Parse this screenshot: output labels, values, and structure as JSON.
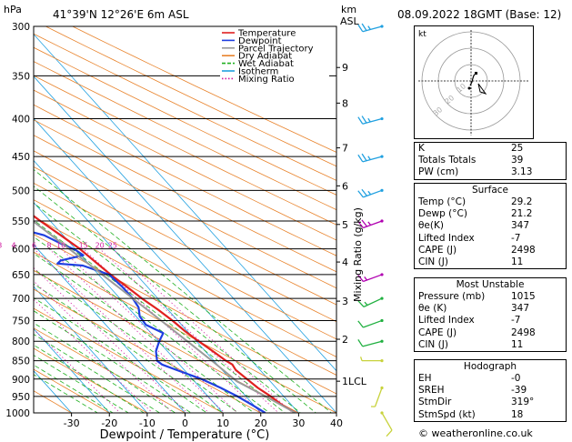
{
  "header": {
    "units": "hPa",
    "location": "41°39'N 12°26'E 6m ASL",
    "km_label": "km",
    "asl_label": "ASL",
    "date": "08.09.2022 18GMT (Base: 12)"
  },
  "legend": [
    {
      "name": "Temperature",
      "color": "#e02020"
    },
    {
      "name": "Dewpoint",
      "color": "#1f3fe0"
    },
    {
      "name": "Parcel Trajectory",
      "color": "#9a9a9a"
    },
    {
      "name": "Dry Adiabat",
      "color": "#e8822a"
    },
    {
      "name": "Wet Adiabat",
      "color": "#20b020"
    },
    {
      "name": "Isotherm",
      "color": "#20a0e0"
    },
    {
      "name": "Mixing Ratio",
      "color": "#d01aa0"
    }
  ],
  "chart_data": {
    "type": "line",
    "xlabel": "Dewpoint / Temperature (°C)",
    "ylabel_right": "Mixing Ratio (g/kg)",
    "x_ticks": [
      -30,
      -20,
      -10,
      0,
      10,
      20,
      30,
      40
    ],
    "pressure_ticks": [
      300,
      350,
      400,
      450,
      500,
      550,
      600,
      650,
      700,
      750,
      800,
      850,
      900,
      950,
      1000
    ],
    "km_ticks": [
      {
        "km": "1LCL",
        "p": 906
      },
      {
        "km": "2",
        "p": 795
      },
      {
        "km": "3",
        "p": 706
      },
      {
        "km": "4",
        "p": 625
      },
      {
        "km": "5",
        "p": 556
      },
      {
        "km": "6",
        "p": 493
      },
      {
        "km": "7",
        "p": 438
      },
      {
        "km": "8",
        "p": 381
      },
      {
        "km": "9",
        "p": 341
      }
    ],
    "mixing_ratio_labels": [
      "1",
      "2",
      "3",
      "4",
      "6",
      "8",
      "10",
      "15",
      "20",
      "25"
    ],
    "series": [
      {
        "name": "Temperature",
        "color": "#e02020",
        "points": [
          [
            1000,
            29.2
          ],
          [
            975,
            27.5
          ],
          [
            950,
            26.6
          ],
          [
            925,
            25.2
          ],
          [
            900,
            24.4
          ],
          [
            875,
            23.6
          ],
          [
            860,
            24.0
          ],
          [
            850,
            23.2
          ],
          [
            825,
            22.0
          ],
          [
            800,
            20.6
          ],
          [
            775,
            19.4
          ],
          [
            750,
            18.6
          ],
          [
            725,
            17.4
          ],
          [
            700,
            15.8
          ],
          [
            675,
            14.6
          ],
          [
            650,
            13.2
          ],
          [
            625,
            12.2
          ],
          [
            600,
            11.2
          ],
          [
            575,
            9.4
          ],
          [
            550,
            7.4
          ],
          [
            525,
            5.6
          ],
          [
            500,
            3.6
          ],
          [
            475,
            1.0
          ],
          [
            450,
            -1.8
          ],
          [
            425,
            -4.6
          ],
          [
            400,
            -7.4
          ],
          [
            375,
            -10.6
          ],
          [
            350,
            -14.0
          ],
          [
            325,
            -17.6
          ],
          [
            300,
            -21.0
          ]
        ]
      },
      {
        "name": "Dewpoint",
        "color": "#1f3fe0",
        "points": [
          [
            1000,
            21.2
          ],
          [
            975,
            19.6
          ],
          [
            950,
            17.8
          ],
          [
            925,
            15.4
          ],
          [
            900,
            12.4
          ],
          [
            875,
            8.0
          ],
          [
            860,
            5.4
          ],
          [
            850,
            5.0
          ],
          [
            825,
            7.0
          ],
          [
            800,
            10.2
          ],
          [
            780,
            13.2
          ],
          [
            760,
            10.6
          ],
          [
            740,
            11.0
          ],
          [
            720,
            12.8
          ],
          [
            700,
            13.4
          ],
          [
            675,
            13.4
          ],
          [
            650,
            12.8
          ],
          [
            632,
            8.0
          ],
          [
            628,
            1.8
          ],
          [
            622,
            3.4
          ],
          [
            612,
            10.6
          ],
          [
            602,
            9.8
          ],
          [
            590,
            7.4
          ],
          [
            575,
            5.0
          ],
          [
            560,
            -1.4
          ],
          [
            548,
            4.4
          ],
          [
            535,
            -4.0
          ],
          [
            518,
            -13.0
          ],
          [
            505,
            -20.8
          ],
          [
            498,
            -10.0
          ],
          [
            493,
            -12.8
          ],
          [
            488,
            -32.0
          ],
          [
            470,
            -33.0
          ],
          [
            450,
            -33.6
          ],
          [
            425,
            -35.0
          ],
          [
            400,
            -36.8
          ],
          [
            375,
            -40.0
          ],
          [
            350,
            -44.0
          ],
          [
            325,
            -48.0
          ],
          [
            300,
            -51.0
          ]
        ]
      },
      {
        "name": "Parcel Trajectory",
        "color": "#9a9a9a",
        "points": [
          [
            1000,
            29.2
          ],
          [
            950,
            25.2
          ],
          [
            906,
            21.2
          ],
          [
            850,
            19.5
          ],
          [
            800,
            17.6
          ],
          [
            750,
            15.6
          ],
          [
            700,
            13.4
          ],
          [
            650,
            11.0
          ],
          [
            600,
            8.4
          ],
          [
            550,
            5.4
          ],
          [
            500,
            2.0
          ],
          [
            450,
            -2.0
          ],
          [
            400,
            -7.2
          ],
          [
            370,
            -10.6
          ]
        ]
      }
    ],
    "wind_barbs": [
      {
        "p": 1000,
        "dir": 150,
        "speed": 10
      },
      {
        "p": 925,
        "dir": 200,
        "speed": 5
      },
      {
        "p": 850,
        "dir": 270,
        "speed": 5
      },
      {
        "p": 800,
        "dir": 255,
        "speed": 10
      },
      {
        "p": 750,
        "dir": 250,
        "speed": 10
      },
      {
        "p": 700,
        "dir": 245,
        "speed": 15
      },
      {
        "p": 650,
        "dir": 250,
        "speed": 15
      },
      {
        "p": 550,
        "dir": 250,
        "speed": 25
      },
      {
        "p": 500,
        "dir": 250,
        "speed": 25
      },
      {
        "p": 450,
        "dir": 255,
        "speed": 25
      },
      {
        "p": 400,
        "dir": 255,
        "speed": 25
      },
      {
        "p": 300,
        "dir": 255,
        "speed": 25
      }
    ]
  },
  "hodograph": {
    "label": "kt",
    "ring_labels": [
      "10",
      "20",
      "30"
    ],
    "trace_color": "#000000",
    "storm_motion_color": "#000000"
  },
  "indices": {
    "rows": [
      {
        "label": "K",
        "value": "25"
      },
      {
        "label": "Totals Totals",
        "value": "39"
      },
      {
        "label": "PW (cm)",
        "value": "3.13"
      }
    ]
  },
  "surface": {
    "title": "Surface",
    "rows": [
      {
        "label": "Temp (°C)",
        "value": "29.2"
      },
      {
        "label": "Dewp (°C)",
        "value": "21.2"
      },
      {
        "label": "θe(K)",
        "value": "347"
      },
      {
        "label": "Lifted Index",
        "value": "-7"
      },
      {
        "label": "CAPE (J)",
        "value": "2498"
      },
      {
        "label": "CIN (J)",
        "value": "11"
      }
    ]
  },
  "most_unstable": {
    "title": "Most Unstable",
    "rows": [
      {
        "label": "Pressure (mb)",
        "value": "1015"
      },
      {
        "label": "θe (K)",
        "value": "347"
      },
      {
        "label": "Lifted Index",
        "value": "-7"
      },
      {
        "label": "CAPE (J)",
        "value": "2498"
      },
      {
        "label": "CIN (J)",
        "value": "11"
      }
    ]
  },
  "hodo_table": {
    "title": "Hodograph",
    "rows": [
      {
        "label": "EH",
        "value": "-0"
      },
      {
        "label": "SREH",
        "value": "-39"
      },
      {
        "label": "StmDir",
        "value": "319°"
      },
      {
        "label": "StmSpd (kt)",
        "value": "18"
      }
    ]
  },
  "credit": "© weatheronline.co.uk"
}
